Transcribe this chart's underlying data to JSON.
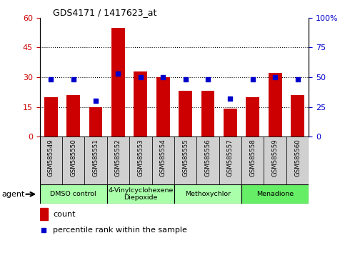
{
  "title": "GDS4171 / 1417623_at",
  "samples": [
    "GSM585549",
    "GSM585550",
    "GSM585551",
    "GSM585552",
    "GSM585553",
    "GSM585554",
    "GSM585555",
    "GSM585556",
    "GSM585557",
    "GSM585558",
    "GSM585559",
    "GSM585560"
  ],
  "count_values": [
    20,
    21,
    15,
    55,
    33,
    30,
    23,
    23,
    14,
    20,
    32,
    21
  ],
  "percentile_values": [
    48,
    48,
    30,
    53,
    50,
    50,
    48,
    48,
    32,
    48,
    50,
    48
  ],
  "bar_color": "#CC0000",
  "dot_color": "#0000CC",
  "ylim_left": [
    0,
    60
  ],
  "ylim_right": [
    0,
    100
  ],
  "yticks_left": [
    0,
    15,
    30,
    45,
    60
  ],
  "yticks_right": [
    0,
    25,
    50,
    75,
    100
  ],
  "grid_lines": [
    15,
    30,
    45
  ],
  "agents": [
    {
      "label": "DMSO control",
      "start": 0,
      "end": 3
    },
    {
      "label": "4-Vinylcyclohexene\nDiepoxide",
      "start": 3,
      "end": 6
    },
    {
      "label": "Methoxychlor",
      "start": 6,
      "end": 9
    },
    {
      "label": "Menadione",
      "start": 9,
      "end": 12
    }
  ],
  "agent_green_light": "#AAFFAA",
  "agent_green_dark": "#66DD66",
  "legend_count_label": "count",
  "legend_pct_label": "percentile rank within the sample",
  "background_color": "#FFFFFF",
  "tick_label_color_left": "#CC0000",
  "tick_label_color_right": "#0000CC",
  "sample_cell_color": "#D0D0D0",
  "n_samples": 12,
  "group_boundaries": [
    3,
    6,
    9
  ]
}
